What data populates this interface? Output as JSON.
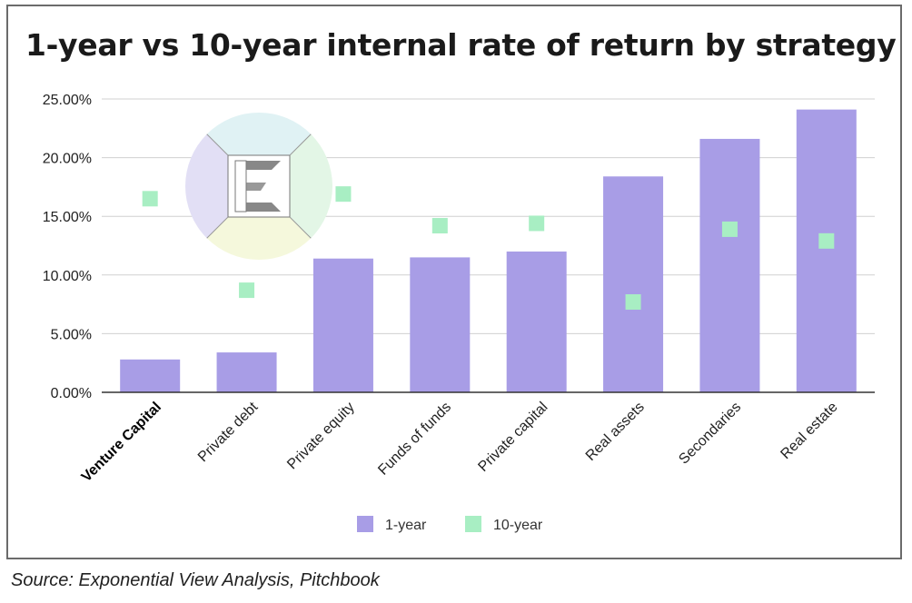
{
  "source": "Source: Exponential View Analysis, Pitchbook",
  "colors": {
    "series_1year": "#a89de6",
    "series_10year": "#a8eec3",
    "grid": "#d0d0d0",
    "axis": "#333333"
  },
  "logo": {
    "icon": "exponential-view-logo",
    "letter": "E"
  },
  "chart_data": {
    "type": "bar",
    "title": "1-year vs 10-year internal rate of return by strategy",
    "xlabel": "",
    "ylabel": "",
    "ylim": [
      0,
      25
    ],
    "yticks": [
      0,
      5,
      10,
      15,
      20,
      25
    ],
    "ytick_labels": [
      "0.00%",
      "5.00%",
      "10.00%",
      "15.00%",
      "20.00%",
      "25.00%"
    ],
    "grid": true,
    "legend_position": "bottom",
    "categories": [
      "Venture Capital",
      "Private debt",
      "Private equity",
      "Funds of funds",
      "Private capital",
      "Real assets",
      "Secondaries",
      "Real estate"
    ],
    "bold_categories": [
      "Venture Capital"
    ],
    "series": [
      {
        "name": "1-year",
        "mark": "bar",
        "values": [
          2.8,
          3.4,
          11.4,
          11.5,
          12.0,
          18.4,
          21.6,
          24.1
        ]
      },
      {
        "name": "10-year",
        "mark": "square",
        "values": [
          16.5,
          8.7,
          16.9,
          14.2,
          14.4,
          7.7,
          13.9,
          12.9
        ]
      }
    ]
  }
}
